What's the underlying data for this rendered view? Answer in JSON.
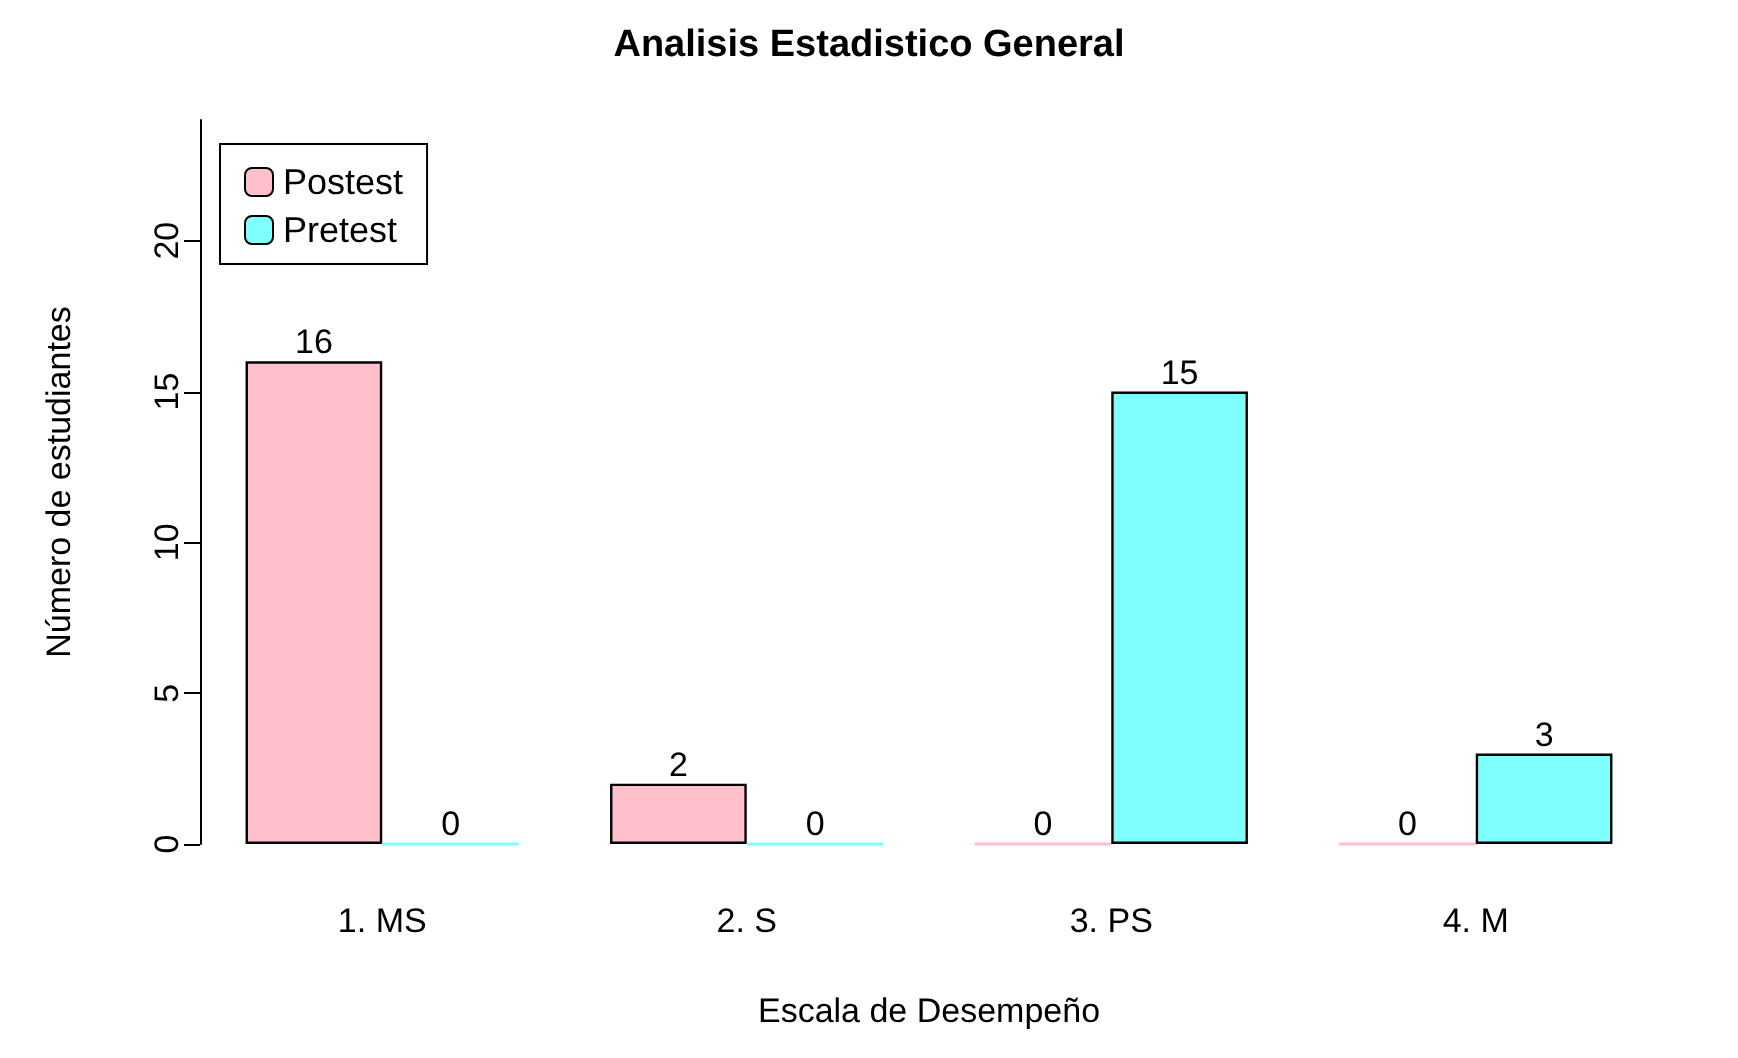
{
  "chart_data": {
    "type": "bar",
    "title": "Analisis Estadistico General",
    "xlabel": "Escala de Desempeño",
    "ylabel": "Número de estudiantes",
    "categories": [
      "1. MS",
      "2. S",
      "3. PS",
      "4. M"
    ],
    "series": [
      {
        "name": "Postest",
        "color": "#ffc0cb",
        "values": [
          16,
          2,
          0,
          0
        ]
      },
      {
        "name": "Pretest",
        "color": "#80ffff",
        "values": [
          0,
          0,
          15,
          3
        ]
      }
    ],
    "ylim": [
      0,
      24
    ],
    "yticks": [
      0,
      5,
      10,
      15,
      20
    ],
    "grid": false,
    "legend": "top left",
    "data_labels": true
  }
}
